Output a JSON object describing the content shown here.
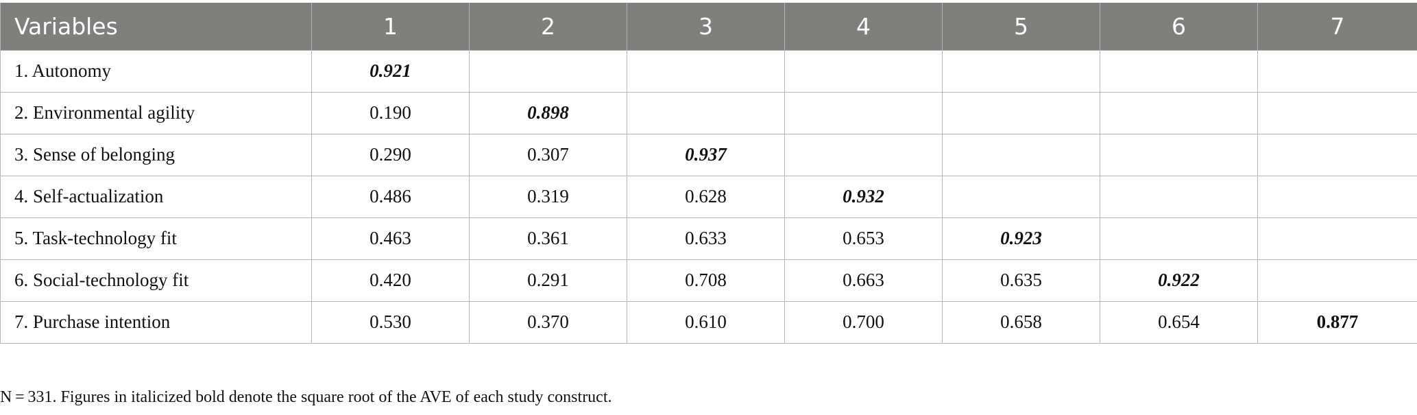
{
  "table": {
    "headers": [
      "Variables",
      "1",
      "2",
      "3",
      "4",
      "5",
      "6",
      "7"
    ],
    "rows": [
      {
        "label": "1. Autonomy",
        "values": [
          "0.921",
          "",
          "",
          "",
          "",
          "",
          ""
        ]
      },
      {
        "label": "2. Environmental agility",
        "values": [
          "0.190",
          "0.898",
          "",
          "",
          "",
          "",
          ""
        ]
      },
      {
        "label": "3. Sense of belonging",
        "values": [
          "0.290",
          "0.307",
          "0.937",
          "",
          "",
          "",
          ""
        ]
      },
      {
        "label": "4. Self-actualization",
        "values": [
          "0.486",
          "0.319",
          "0.628",
          "0.932",
          "",
          "",
          ""
        ]
      },
      {
        "label": "5. Task-technology fit",
        "values": [
          "0.463",
          "0.361",
          "0.633",
          "0.653",
          "0.923",
          "",
          ""
        ]
      },
      {
        "label": "6. Social-technology fit",
        "values": [
          "0.420",
          "0.291",
          "0.708",
          "0.663",
          "0.635",
          "0.922",
          ""
        ]
      },
      {
        "label": "7. Purchase intention",
        "values": [
          "0.530",
          "0.370",
          "0.610",
          "0.700",
          "0.658",
          "0.654",
          "0.877"
        ]
      }
    ]
  },
  "note": "N = 331. Figures in italicized bold denote the square root of the AVE of each study construct."
}
